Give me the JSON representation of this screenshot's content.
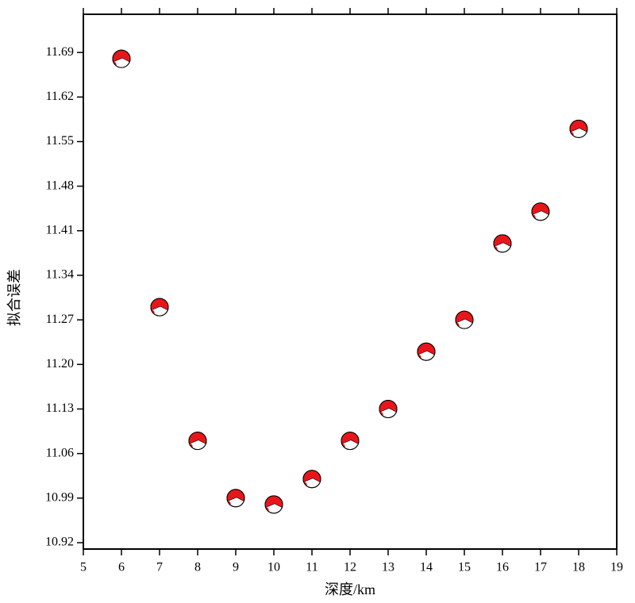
{
  "chart_data": {
    "type": "scatter",
    "x_label": "深度/km",
    "y_label": "拟合误差",
    "x": [
      6,
      7,
      8,
      9,
      10,
      11,
      12,
      13,
      14,
      15,
      16,
      17,
      18
    ],
    "values": [
      11.68,
      11.29,
      11.08,
      10.99,
      10.98,
      11.02,
      11.08,
      11.13,
      11.22,
      11.27,
      11.39,
      11.44,
      11.57
    ],
    "color": "#e8161b",
    "xlim": [
      5,
      19
    ],
    "xticks": [
      5,
      6,
      7,
      8,
      9,
      10,
      11,
      12,
      13,
      14,
      15,
      16,
      17,
      18,
      19
    ],
    "ylim": [
      10.91,
      11.75
    ],
    "yticks": [
      10.92,
      10.99,
      11.06,
      11.13,
      {
        "value": 11.2,
        "label": "11.20"
      },
      11.27,
      11.34,
      11.41,
      11.48,
      11.55,
      11.62,
      11.69
    ]
  }
}
